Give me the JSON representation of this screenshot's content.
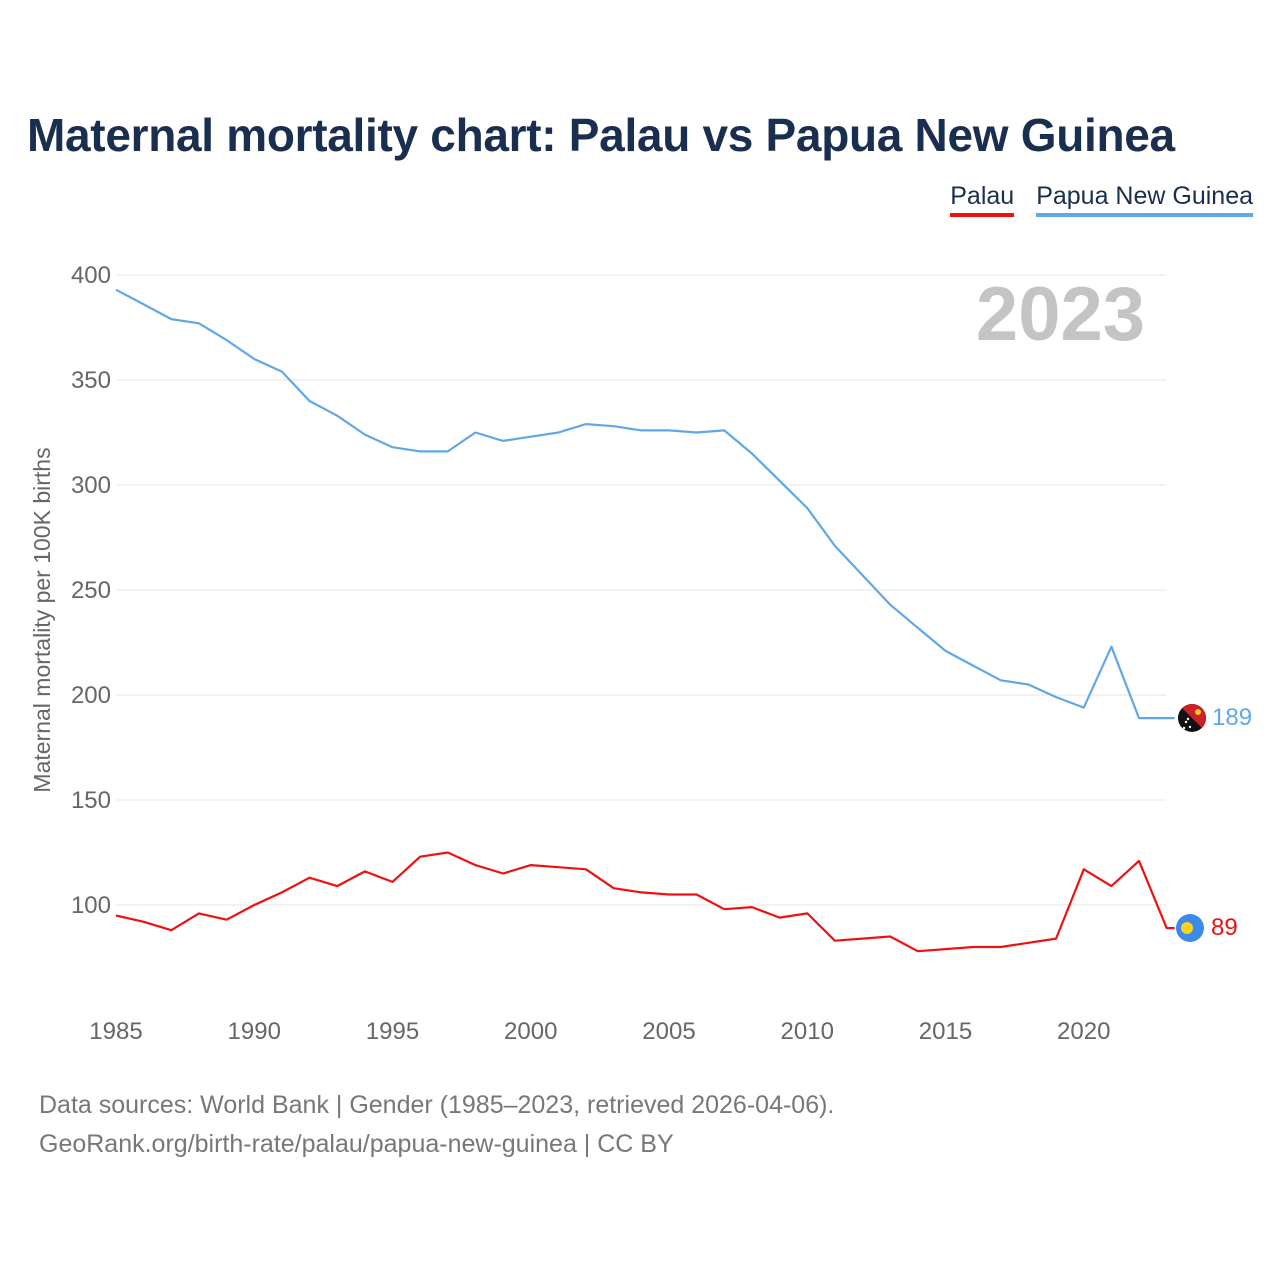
{
  "title": "Maternal mortality chart: Palau vs Papua New Guinea",
  "legend": [
    {
      "label": "Palau",
      "color": "#ee1111"
    },
    {
      "label": "Papua New Guinea",
      "color": "#5fa8e8"
    }
  ],
  "year_display": "2023",
  "footer": {
    "source": "Data sources: World Bank | Gender (1985–2023, retrieved 2026-04-06).",
    "credit": "GeoRank.org/birth-rate/palau/papua-new-guinea | CC BY"
  },
  "chart_data": {
    "type": "line",
    "title": "Maternal mortality chart: Palau vs Papua New Guinea",
    "xlabel": "",
    "ylabel": "Maternal mortality per 100K births",
    "xlim": [
      1985,
      2024
    ],
    "ylim": [
      50,
      400
    ],
    "xticks": [
      1985,
      1990,
      1995,
      2000,
      2005,
      2010,
      2015,
      2020
    ],
    "yticks": [
      100,
      150,
      200,
      250,
      300,
      350,
      400
    ],
    "grid": true,
    "legend_position": "top-right",
    "x": [
      1985,
      1986,
      1987,
      1988,
      1989,
      1990,
      1991,
      1992,
      1993,
      1994,
      1995,
      1996,
      1997,
      1998,
      1999,
      2000,
      2001,
      2002,
      2003,
      2004,
      2005,
      2006,
      2007,
      2008,
      2009,
      2010,
      2011,
      2012,
      2013,
      2014,
      2015,
      2016,
      2017,
      2018,
      2019,
      2020,
      2021,
      2022,
      2023
    ],
    "series": [
      {
        "name": "Papua New Guinea",
        "color": "#5fa8e8",
        "end_label": "189",
        "values": [
          393,
          386,
          379,
          377,
          369,
          360,
          354,
          340,
          333,
          324,
          318,
          316,
          316,
          325,
          321,
          323,
          325,
          329,
          328,
          326,
          326,
          325,
          326,
          315,
          302,
          289,
          271,
          257,
          243,
          232,
          221,
          214,
          207,
          205,
          199,
          194,
          223,
          189,
          189
        ]
      },
      {
        "name": "Palau",
        "color": "#ee1111",
        "end_label": "89",
        "values": [
          95,
          92,
          88,
          96,
          93,
          100,
          106,
          113,
          109,
          116,
          111,
          123,
          125,
          119,
          115,
          119,
          118,
          117,
          108,
          106,
          105,
          105,
          98,
          99,
          94,
          96,
          83,
          84,
          85,
          78,
          79,
          80,
          80,
          82,
          84,
          117,
          109,
          121,
          89
        ]
      }
    ]
  }
}
